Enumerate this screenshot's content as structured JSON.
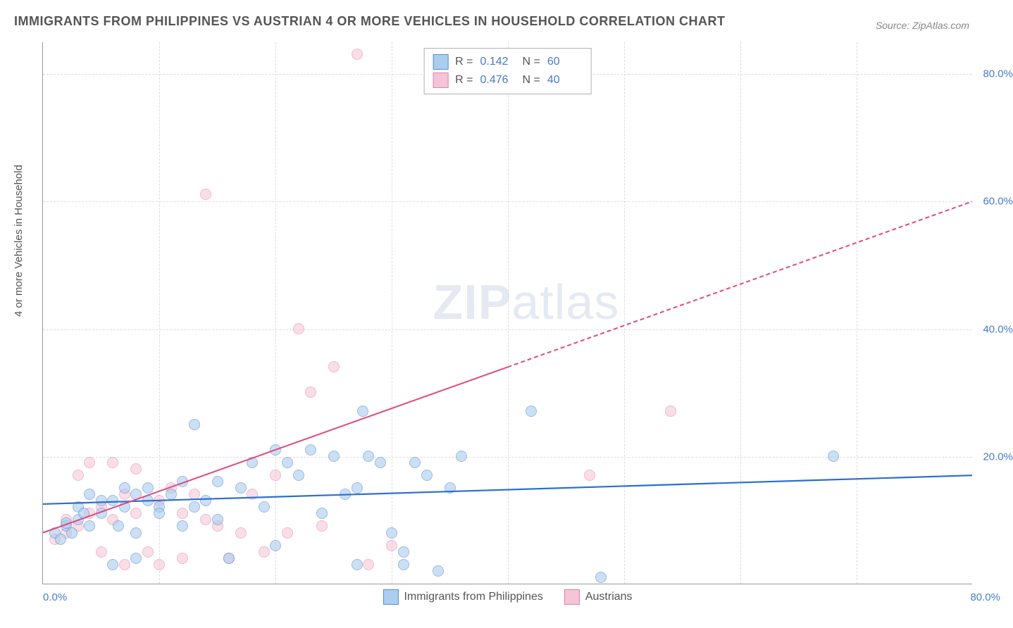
{
  "title": "IMMIGRANTS FROM PHILIPPINES VS AUSTRIAN 4 OR MORE VEHICLES IN HOUSEHOLD CORRELATION CHART",
  "source": "Source: ZipAtlas.com",
  "y_axis_label": "4 or more Vehicles in Household",
  "watermark": {
    "bold": "ZIP",
    "thin": "atlas"
  },
  "chart": {
    "type": "scatter",
    "xlim": [
      0,
      80
    ],
    "ylim": [
      0,
      85
    ],
    "x_ticks": [
      0,
      80
    ],
    "x_tick_labels": [
      "0.0%",
      "80.0%"
    ],
    "y_ticks": [
      20,
      40,
      60,
      80
    ],
    "y_tick_labels": [
      "20.0%",
      "40.0%",
      "60.0%",
      "80.0%"
    ],
    "v_gridlines": [
      10,
      20,
      30,
      40,
      50,
      60,
      70
    ],
    "background_color": "#ffffff",
    "grid_color": "#dddddd",
    "axis_color": "#999999",
    "tick_label_color": "#4a7bc8",
    "title_color": "#555555",
    "title_fontsize": 18,
    "label_fontsize": 15
  },
  "series": {
    "blue": {
      "label": "Immigrants from Philippines",
      "r_label": "R =",
      "r_value": "0.142",
      "n_label": "N =",
      "n_value": "60",
      "fill": "#aacdf0",
      "stroke": "#5a8fc8",
      "fill_opacity": 0.6,
      "marker_size": 16,
      "line_color": "#2a6fd0",
      "line_width": 2.2,
      "line_dash": "none",
      "trend": {
        "y_at_x0": 12.5,
        "y_at_x80": 17.0
      },
      "points": [
        [
          1,
          8
        ],
        [
          1.5,
          7
        ],
        [
          2,
          9
        ],
        [
          2,
          9.5
        ],
        [
          2.5,
          8
        ],
        [
          3,
          12
        ],
        [
          3,
          10
        ],
        [
          3.5,
          11
        ],
        [
          4,
          9
        ],
        [
          4,
          14
        ],
        [
          5,
          11
        ],
        [
          5,
          13
        ],
        [
          6,
          13
        ],
        [
          6,
          3
        ],
        [
          6.5,
          9
        ],
        [
          7,
          15
        ],
        [
          7,
          12
        ],
        [
          8,
          14
        ],
        [
          8,
          8
        ],
        [
          8,
          4
        ],
        [
          9,
          13
        ],
        [
          9,
          15
        ],
        [
          10,
          12
        ],
        [
          10,
          11
        ],
        [
          11,
          14
        ],
        [
          12,
          16
        ],
        [
          12,
          9
        ],
        [
          13,
          12
        ],
        [
          13,
          25
        ],
        [
          14,
          13
        ],
        [
          15,
          16
        ],
        [
          15,
          10
        ],
        [
          16,
          4
        ],
        [
          17,
          15
        ],
        [
          18,
          19
        ],
        [
          19,
          12
        ],
        [
          20,
          21
        ],
        [
          20,
          6
        ],
        [
          21,
          19
        ],
        [
          22,
          17
        ],
        [
          23,
          21
        ],
        [
          24,
          11
        ],
        [
          25,
          20
        ],
        [
          26,
          14
        ],
        [
          27,
          15
        ],
        [
          27,
          3
        ],
        [
          27.5,
          27
        ],
        [
          28,
          20
        ],
        [
          29,
          19
        ],
        [
          30,
          8
        ],
        [
          31,
          5
        ],
        [
          31,
          3
        ],
        [
          32,
          19
        ],
        [
          33,
          17
        ],
        [
          34,
          2
        ],
        [
          35,
          15
        ],
        [
          36,
          20
        ],
        [
          42,
          27
        ],
        [
          48,
          1
        ],
        [
          68,
          20
        ]
      ]
    },
    "pink": {
      "label": "Austrians",
      "r_label": "R =",
      "r_value": "0.476",
      "n_label": "N =",
      "n_value": "40",
      "fill": "#f5c4d6",
      "stroke": "#e77fa8",
      "fill_opacity": 0.55,
      "marker_size": 16,
      "line_color": "#e04a80",
      "line_width": 2,
      "line_dash": "solid_then_dashed",
      "dash_pattern": "6,4",
      "solid_until_x": 40,
      "trend": {
        "y_at_x0": 8.0,
        "y_at_x80": 60.0
      },
      "points": [
        [
          1,
          7
        ],
        [
          2,
          8
        ],
        [
          2,
          10
        ],
        [
          3,
          9
        ],
        [
          3,
          17
        ],
        [
          4,
          11
        ],
        [
          4,
          19
        ],
        [
          5,
          12
        ],
        [
          5,
          5
        ],
        [
          6,
          19
        ],
        [
          6,
          10
        ],
        [
          7,
          14
        ],
        [
          7,
          3
        ],
        [
          8,
          11
        ],
        [
          8,
          18
        ],
        [
          9,
          5
        ],
        [
          10,
          13
        ],
        [
          10,
          3
        ],
        [
          11,
          15
        ],
        [
          12,
          11
        ],
        [
          12,
          4
        ],
        [
          13,
          14
        ],
        [
          14,
          10
        ],
        [
          14,
          61
        ],
        [
          15,
          9
        ],
        [
          16,
          4
        ],
        [
          17,
          8
        ],
        [
          18,
          14
        ],
        [
          19,
          5
        ],
        [
          20,
          17
        ],
        [
          21,
          8
        ],
        [
          22,
          40
        ],
        [
          23,
          30
        ],
        [
          24,
          9
        ],
        [
          25,
          34
        ],
        [
          27,
          83
        ],
        [
          28,
          3
        ],
        [
          30,
          6
        ],
        [
          47,
          17
        ],
        [
          54,
          27
        ]
      ]
    }
  }
}
